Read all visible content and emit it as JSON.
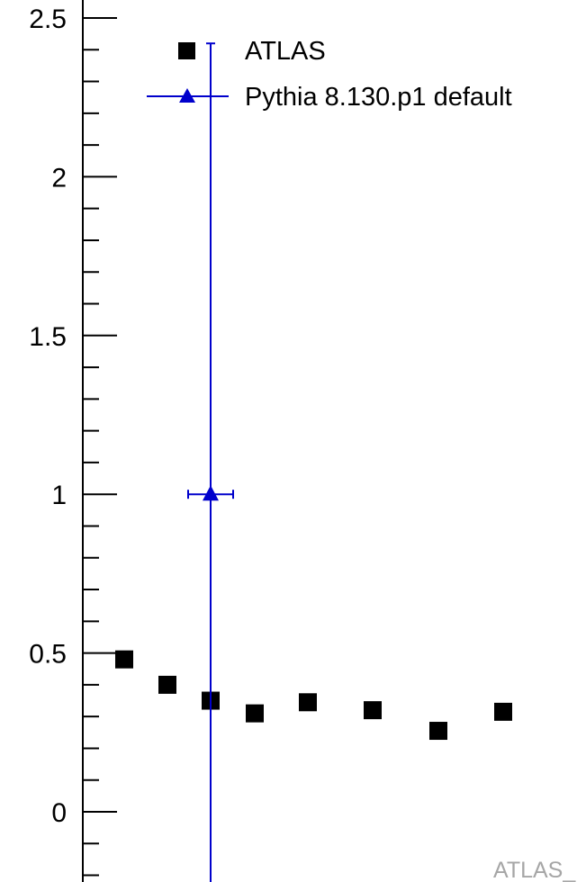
{
  "chart_data": {
    "type": "scatter",
    "title": "",
    "xlabel": "",
    "ylabel": "",
    "ylim": [
      -0.22,
      2.56
    ],
    "y_ticks": [
      "0",
      "0.5",
      "1",
      "1.5",
      "2",
      "2.5"
    ],
    "grid": false,
    "legend_position": "top-right",
    "watermark": "ATLAS_",
    "series": [
      {
        "name": "ATLAS",
        "marker": "square",
        "color": "#000000",
        "points": [
          {
            "y": 0.48
          },
          {
            "y": 0.4
          },
          {
            "y": 0.35
          },
          {
            "y": 0.31
          },
          {
            "y": 0.345
          },
          {
            "y": 0.32
          },
          {
            "y": 0.255
          },
          {
            "y": 0.315
          }
        ]
      },
      {
        "name": "Pythia 8.130.p1 default",
        "marker": "triangle",
        "color": "#0000cc",
        "points": [
          {
            "y": 1.0,
            "yerr_up": 1.42,
            "yerr_down": 1.45
          }
        ]
      }
    ]
  }
}
